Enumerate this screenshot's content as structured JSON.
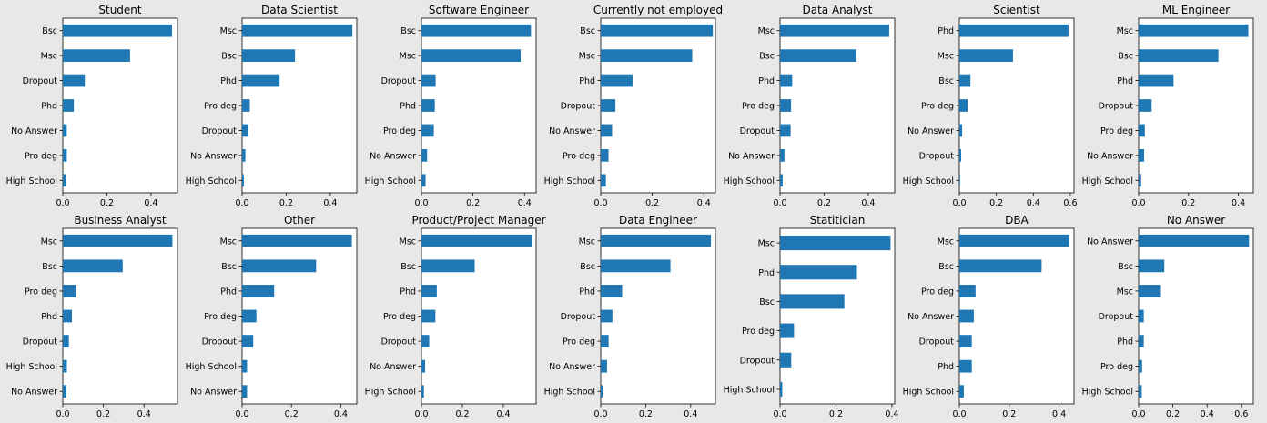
{
  "figure": {
    "background": "#e8e8e8",
    "bar_color": "#1f77b4"
  },
  "chart_data": [
    {
      "type": "bar",
      "orientation": "horizontal",
      "title": "Student",
      "xlim": [
        0,
        0.52
      ],
      "xticks": [
        0,
        0.2,
        0.4
      ],
      "xtick_labels": [
        "0.0",
        "0.2",
        "0.4"
      ],
      "categories": [
        "Bsc",
        "Msc",
        "Dropout",
        "Phd",
        "No Answer",
        "Pro deg",
        "High School"
      ],
      "values": [
        0.495,
        0.305,
        0.1,
        0.05,
        0.018,
        0.018,
        0.013
      ]
    },
    {
      "type": "bar",
      "orientation": "horizontal",
      "title": "Data Scientist",
      "xlim": [
        0,
        0.52
      ],
      "xticks": [
        0,
        0.2,
        0.4
      ],
      "xtick_labels": [
        "0.0",
        "0.2",
        "0.4"
      ],
      "categories": [
        "Msc",
        "Bsc",
        "Phd",
        "Pro deg",
        "Dropout",
        "No Answer",
        "High School"
      ],
      "values": [
        0.5,
        0.24,
        0.17,
        0.035,
        0.027,
        0.015,
        0.008
      ]
    },
    {
      "type": "bar",
      "orientation": "horizontal",
      "title": "Software Engineer",
      "xlim": [
        0,
        0.445
      ],
      "xticks": [
        0,
        0.2,
        0.4
      ],
      "xtick_labels": [
        "0.0",
        "0.2",
        "0.4"
      ],
      "categories": [
        "Bsc",
        "Msc",
        "Dropout",
        "Phd",
        "Pro deg",
        "No Answer",
        "High School"
      ],
      "values": [
        0.425,
        0.385,
        0.055,
        0.052,
        0.048,
        0.022,
        0.016
      ]
    },
    {
      "type": "bar",
      "orientation": "horizontal",
      "title": "Currently not employed",
      "xlim": [
        0,
        0.445
      ],
      "xticks": [
        0,
        0.2,
        0.4
      ],
      "xtick_labels": [
        "0.0",
        "0.2",
        "0.4"
      ],
      "categories": [
        "Bsc",
        "Msc",
        "Phd",
        "Dropout",
        "No Answer",
        "Pro deg",
        "High School"
      ],
      "values": [
        0.435,
        0.355,
        0.125,
        0.057,
        0.044,
        0.03,
        0.02
      ]
    },
    {
      "type": "bar",
      "orientation": "horizontal",
      "title": "Data Analyst",
      "xlim": [
        0,
        0.52
      ],
      "xticks": [
        0,
        0.2,
        0.4
      ],
      "xtick_labels": [
        "0.0",
        "0.2",
        "0.4"
      ],
      "categories": [
        "Msc",
        "Bsc",
        "Phd",
        "Pro deg",
        "Dropout",
        "No Answer",
        "High School"
      ],
      "values": [
        0.495,
        0.345,
        0.055,
        0.05,
        0.048,
        0.02,
        0.012
      ]
    },
    {
      "type": "bar",
      "orientation": "horizontal",
      "title": "Scientist",
      "xlim": [
        0,
        0.62
      ],
      "xticks": [
        0,
        0.2,
        0.4,
        0.6
      ],
      "xtick_labels": [
        "0.0",
        "0.2",
        "0.4",
        "0.6"
      ],
      "categories": [
        "Phd",
        "Msc",
        "Bsc",
        "Pro deg",
        "No Answer",
        "Dropout",
        "High School"
      ],
      "values": [
        0.59,
        0.29,
        0.06,
        0.045,
        0.015,
        0.01,
        0.004
      ]
    },
    {
      "type": "bar",
      "orientation": "horizontal",
      "title": "ML Engineer",
      "xlim": [
        0,
        0.46
      ],
      "xticks": [
        0,
        0.2,
        0.4
      ],
      "xtick_labels": [
        "0.0",
        "0.2",
        "0.4"
      ],
      "categories": [
        "Msc",
        "Bsc",
        "Phd",
        "Dropout",
        "Pro deg",
        "No Answer",
        "High School"
      ],
      "values": [
        0.44,
        0.32,
        0.14,
        0.052,
        0.025,
        0.022,
        0.01
      ]
    },
    {
      "type": "bar",
      "orientation": "horizontal",
      "title": "Business Analyst",
      "xlim": [
        0,
        0.565
      ],
      "xticks": [
        0,
        0.2,
        0.4
      ],
      "xtick_labels": [
        "0.0",
        "0.2",
        "0.4"
      ],
      "categories": [
        "Msc",
        "Bsc",
        "Pro deg",
        "Phd",
        "Dropout",
        "High School",
        "No Answer"
      ],
      "values": [
        0.54,
        0.295,
        0.065,
        0.045,
        0.03,
        0.02,
        0.018
      ]
    },
    {
      "type": "bar",
      "orientation": "horizontal",
      "title": "Other",
      "xlim": [
        0,
        0.465
      ],
      "xticks": [
        0,
        0.2,
        0.4
      ],
      "xtick_labels": [
        "0.0",
        "0.2",
        "0.4"
      ],
      "categories": [
        "Msc",
        "Bsc",
        "Phd",
        "Pro deg",
        "Dropout",
        "High School",
        "No Answer"
      ],
      "values": [
        0.445,
        0.3,
        0.13,
        0.058,
        0.045,
        0.02,
        0.02
      ]
    },
    {
      "type": "bar",
      "orientation": "horizontal",
      "title": "Product/Project Manager",
      "xlim": [
        0,
        0.56
      ],
      "xticks": [
        0,
        0.2,
        0.4
      ],
      "xtick_labels": [
        "0.0",
        "0.2",
        "0.4"
      ],
      "categories": [
        "Msc",
        "Bsc",
        "Phd",
        "Pro deg",
        "Dropout",
        "No Answer",
        "High School"
      ],
      "values": [
        0.54,
        0.26,
        0.075,
        0.068,
        0.038,
        0.018,
        0.012
      ]
    },
    {
      "type": "bar",
      "orientation": "horizontal",
      "title": "Data Engineer",
      "xlim": [
        0,
        0.51
      ],
      "xticks": [
        0,
        0.2,
        0.4
      ],
      "xtick_labels": [
        "0.0",
        "0.2",
        "0.4"
      ],
      "categories": [
        "Msc",
        "Bsc",
        "Phd",
        "Dropout",
        "Pro deg",
        "No Answer",
        "High School"
      ],
      "values": [
        0.49,
        0.31,
        0.095,
        0.052,
        0.035,
        0.028,
        0.008
      ]
    },
    {
      "type": "bar",
      "orientation": "horizontal",
      "title": "Statitician",
      "xlim": [
        0,
        0.41
      ],
      "xticks": [
        0,
        0.2,
        0.4
      ],
      "xtick_labels": [
        "0.0",
        "0.2",
        "0.4"
      ],
      "categories": [
        "Msc",
        "Phd",
        "Bsc",
        "Pro deg",
        "Dropout",
        "High School"
      ],
      "values": [
        0.395,
        0.275,
        0.23,
        0.05,
        0.04,
        0.008
      ]
    },
    {
      "type": "bar",
      "orientation": "horizontal",
      "title": "DBA",
      "xlim": [
        0,
        0.46
      ],
      "xticks": [
        0,
        0.2,
        0.4
      ],
      "xtick_labels": [
        "0.0",
        "0.2",
        "0.4"
      ],
      "categories": [
        "Msc",
        "Bsc",
        "Pro deg",
        "No Answer",
        "Dropout",
        "Phd",
        "High School"
      ],
      "values": [
        0.44,
        0.33,
        0.065,
        0.058,
        0.05,
        0.05,
        0.018
      ]
    },
    {
      "type": "bar",
      "orientation": "horizontal",
      "title": "No Answer",
      "xlim": [
        0,
        0.67
      ],
      "xticks": [
        0,
        0.2,
        0.4,
        0.6
      ],
      "xtick_labels": [
        "0.0",
        "0.2",
        "0.4",
        "0.6"
      ],
      "categories": [
        "No Answer",
        "Bsc",
        "Msc",
        "Dropout",
        "Phd",
        "Pro deg",
        "High School"
      ],
      "values": [
        0.645,
        0.15,
        0.125,
        0.03,
        0.03,
        0.02,
        0.018
      ]
    }
  ]
}
